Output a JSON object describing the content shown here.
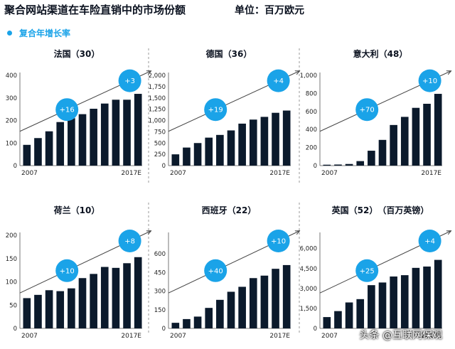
{
  "header": {
    "title": "聚合网站渠道在车险直销中的市场份额",
    "unit": "单位：百万欧元",
    "legend": "复合年增长率"
  },
  "watermark": "头条 @互联网保观",
  "colors": {
    "bar": "#0b1a2c",
    "accent": "#1aa3e8",
    "axis": "#555555",
    "divider": "#9a9a9a"
  },
  "chart_data": [
    {
      "type": "bar",
      "title": "法国（30）",
      "x_start": "2007",
      "x_end": "2017E",
      "values": [
        92,
        122,
        152,
        193,
        210,
        228,
        252,
        275,
        292,
        292,
        318
      ],
      "ylim": [
        0,
        400
      ],
      "yticks": [
        0,
        100,
        200,
        300,
        400
      ],
      "ytick_labels": [
        "0",
        "100",
        "200",
        "300",
        "400"
      ],
      "annotations": [
        "+16",
        "+3"
      ]
    },
    {
      "type": "bar",
      "title": "德国（36）",
      "x_start": "2007",
      "x_end": "2017E",
      "values": [
        250,
        400,
        500,
        620,
        680,
        780,
        930,
        1020,
        1080,
        1170,
        1220
      ],
      "ylim": [
        0,
        2000
      ],
      "yticks": [
        0,
        250,
        500,
        750,
        1000,
        1250,
        1500,
        1750,
        2000
      ],
      "ytick_labels": [
        "0",
        "250",
        "500",
        "750",
        "1,000",
        "1,250",
        "1,500",
        "1,750",
        "2,000"
      ],
      "annotations": [
        "+19",
        "+4"
      ]
    },
    {
      "type": "bar",
      "title": "意大利（48）",
      "x_start": "2007",
      "x_end": "2017E",
      "values": [
        10,
        12,
        18,
        50,
        165,
        285,
        450,
        540,
        640,
        685,
        795
      ],
      "ylim": [
        0,
        1000
      ],
      "yticks": [
        0,
        200,
        400,
        600,
        800,
        1000
      ],
      "ytick_labels": [
        "0",
        "200",
        "400",
        "600",
        "800",
        "1,000"
      ],
      "annotations": [
        "+70",
        "+10"
      ]
    },
    {
      "type": "bar",
      "title": "荷兰（10）",
      "x_start": "2007",
      "x_end": "2017E",
      "values": [
        65,
        72,
        82,
        80,
        86,
        108,
        117,
        132,
        130,
        140,
        153
      ],
      "ylim": [
        0,
        200
      ],
      "yticks": [
        0,
        50,
        100,
        150,
        200
      ],
      "ytick_labels": [
        "0",
        "50",
        "100",
        "150",
        "200"
      ],
      "annotations": [
        "+10",
        "+8"
      ]
    },
    {
      "type": "bar",
      "title": "西班牙（22）",
      "x_start": "2007",
      "x_end": "2017E",
      "values": [
        45,
        75,
        95,
        165,
        230,
        295,
        335,
        405,
        425,
        480,
        510
      ],
      "ylim": [
        0,
        750
      ],
      "yticks": [
        0,
        150,
        300,
        450,
        600,
        750
      ],
      "ytick_labels": [
        "0",
        "150",
        "300",
        "450",
        "600",
        ""
      ],
      "annotations": [
        "+40",
        "+10"
      ]
    },
    {
      "type": "bar",
      "title": "英国（52）　（百万英镑）",
      "x_start": "2007",
      "x_end": "2017E",
      "values": [
        850,
        1300,
        1950,
        2200,
        3250,
        3450,
        3900,
        4000,
        4550,
        4650,
        5150
      ],
      "ylim": [
        0,
        7000
      ],
      "yticks": [
        0,
        1500,
        3000,
        4500,
        6000
      ],
      "ytick_labels": [
        "0",
        "1,500",
        "3,000",
        "4,500",
        "6,000"
      ],
      "annotations": [
        "+25",
        "+4"
      ]
    }
  ]
}
